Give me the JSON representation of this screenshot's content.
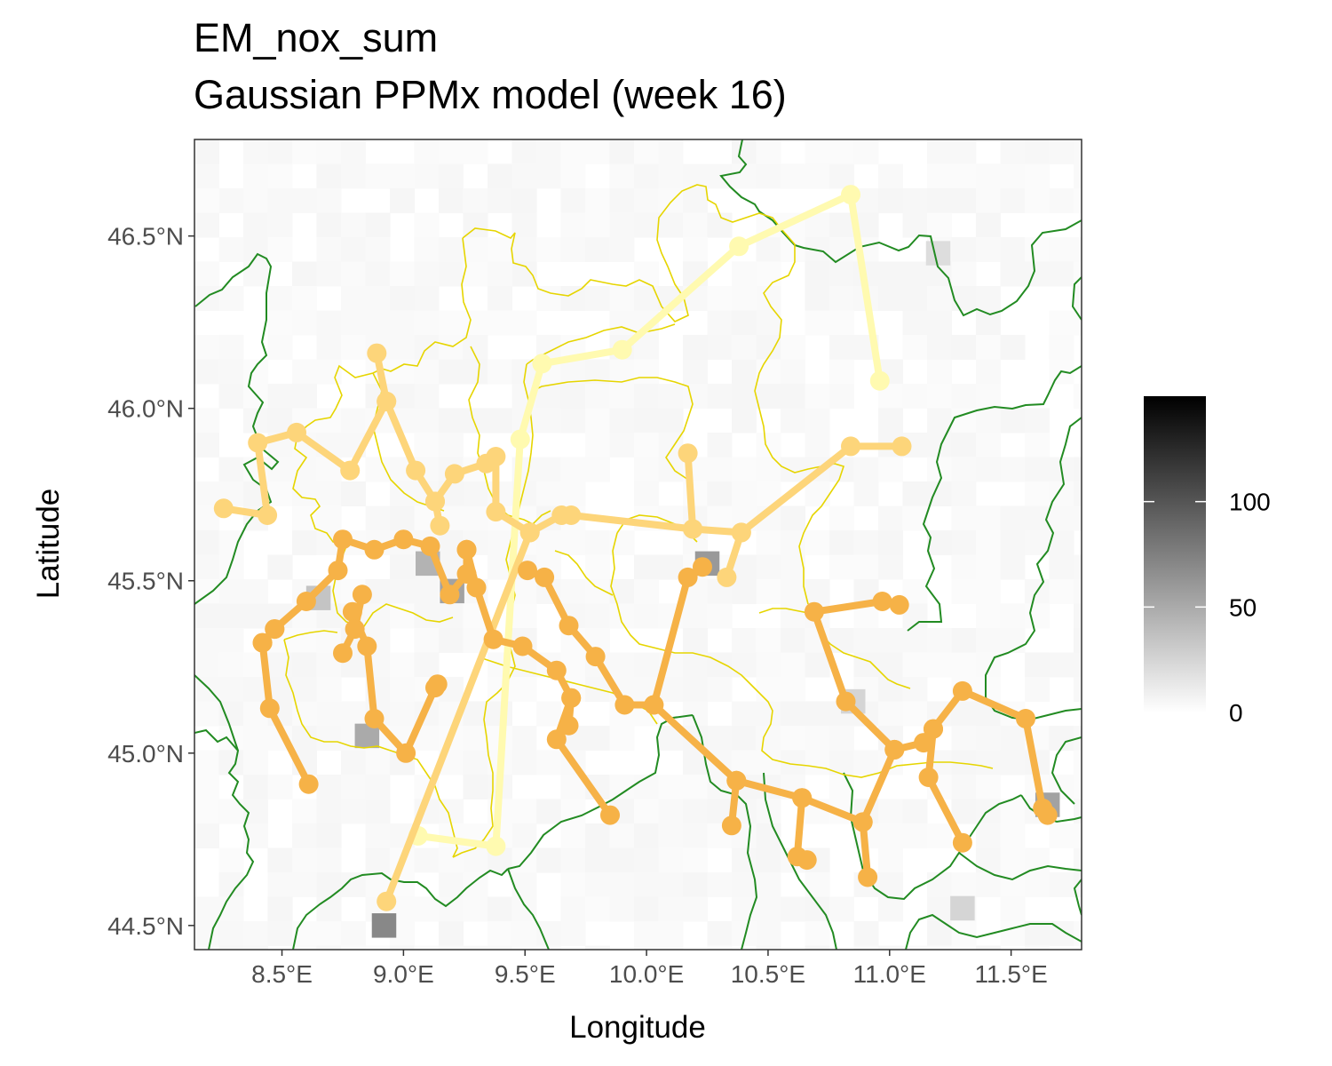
{
  "title_line1": "EM_nox_sum",
  "title_line2": "Gaussian PPMx model (week 16)",
  "x_axis": {
    "label": "Longitude",
    "range": [
      8.14,
      11.79
    ],
    "ticks": [
      {
        "value": 8.5,
        "label": "8.5°E"
      },
      {
        "value": 9.0,
        "label": "9.0°E"
      },
      {
        "value": 9.5,
        "label": "9.5°E"
      },
      {
        "value": 10.0,
        "label": "10.0°E"
      },
      {
        "value": 10.5,
        "label": "10.5°E"
      },
      {
        "value": 11.0,
        "label": "11.0°E"
      },
      {
        "value": 11.5,
        "label": "11.5°E"
      }
    ]
  },
  "y_axis": {
    "label": "Latitude",
    "range": [
      44.43,
      46.78
    ],
    "ticks": [
      {
        "value": 44.5,
        "label": "44.5°N"
      },
      {
        "value": 45.0,
        "label": "45.0°N"
      },
      {
        "value": 45.5,
        "label": "45.5°N"
      },
      {
        "value": 46.0,
        "label": "46.0°N"
      },
      {
        "value": 46.5,
        "label": "46.5°N"
      }
    ]
  },
  "legend": {
    "scale_min": 0,
    "scale_max": 150,
    "labels": [
      {
        "value": 0,
        "label": "0"
      },
      {
        "value": 50,
        "label": "50"
      },
      {
        "value": 100,
        "label": "100"
      }
    ],
    "gradient_from": "#ffffff",
    "gradient_to": "#000000"
  },
  "colors": {
    "border_green": "#228B22",
    "border_yellow": "#E6D500",
    "cluster_light": "#FFFAB0",
    "cluster_mid": "#FDD57A",
    "cluster_orange": "#F6B247"
  },
  "chart_data": {
    "type": "map",
    "raster_hotspots": [
      {
        "lon": 8.92,
        "lat": 44.5,
        "value": 70
      },
      {
        "lon": 9.2,
        "lat": 45.47,
        "value": 55
      },
      {
        "lon": 9.1,
        "lat": 45.55,
        "value": 45
      },
      {
        "lon": 10.25,
        "lat": 45.55,
        "value": 60
      },
      {
        "lon": 8.85,
        "lat": 45.05,
        "value": 50
      },
      {
        "lon": 11.65,
        "lat": 44.85,
        "value": 55
      },
      {
        "lon": 8.65,
        "lat": 45.45,
        "value": 35
      },
      {
        "lon": 11.3,
        "lat": 44.55,
        "value": 25
      },
      {
        "lon": 10.85,
        "lat": 45.15,
        "value": 25
      },
      {
        "lon": 11.2,
        "lat": 46.45,
        "value": 20
      }
    ],
    "clusters": [
      {
        "color": "cluster_light",
        "paths": [
          [
            [
              9.06,
              44.76
            ],
            [
              9.38,
              44.73
            ],
            [
              9.48,
              45.91
            ],
            [
              9.57,
              46.13
            ],
            [
              9.9,
              46.17
            ],
            [
              10.38,
              46.47
            ],
            [
              10.84,
              46.62
            ],
            [
              10.96,
              46.08
            ]
          ]
        ]
      },
      {
        "color": "cluster_mid",
        "paths": [
          [
            [
              8.26,
              45.71
            ],
            [
              8.44,
              45.69
            ],
            [
              8.4,
              45.9
            ],
            [
              8.56,
              45.93
            ],
            [
              8.78,
              45.82
            ],
            [
              8.93,
              46.02
            ],
            [
              8.89,
              46.16
            ]
          ],
          [
            [
              8.93,
              46.02
            ],
            [
              9.05,
              45.82
            ],
            [
              9.13,
              45.73
            ],
            [
              9.21,
              45.81
            ],
            [
              9.34,
              45.84
            ],
            [
              9.38,
              45.86
            ],
            [
              9.38,
              45.7
            ],
            [
              9.52,
              45.64
            ],
            [
              9.65,
              45.69
            ],
            [
              9.69,
              45.69
            ],
            [
              10.19,
              45.65
            ],
            [
              10.39,
              45.64
            ],
            [
              10.84,
              45.89
            ],
            [
              11.05,
              45.89
            ]
          ],
          [
            [
              10.19,
              45.65
            ],
            [
              10.17,
              45.87
            ]
          ],
          [
            [
              10.39,
              45.64
            ],
            [
              10.33,
              45.51
            ]
          ],
          [
            [
              9.13,
              45.73
            ],
            [
              9.15,
              45.66
            ]
          ],
          [
            [
              8.93,
              44.57
            ],
            [
              9.52,
              45.64
            ]
          ]
        ]
      },
      {
        "color": "cluster_orange",
        "paths": [
          [
            [
              8.61,
              44.91
            ],
            [
              8.45,
              45.13
            ],
            [
              8.42,
              45.32
            ],
            [
              8.47,
              45.36
            ],
            [
              8.6,
              45.44
            ],
            [
              8.73,
              45.53
            ],
            [
              8.75,
              45.62
            ],
            [
              8.88,
              45.59
            ],
            [
              9.0,
              45.62
            ],
            [
              9.11,
              45.6
            ],
            [
              9.19,
              45.46
            ],
            [
              9.26,
              45.52
            ],
            [
              9.26,
              45.59
            ]
          ],
          [
            [
              8.79,
              45.41
            ],
            [
              8.85,
              45.31
            ],
            [
              8.88,
              45.1
            ],
            [
              9.01,
              45.0
            ],
            [
              9.13,
              45.19
            ],
            [
              9.14,
              45.2
            ]
          ],
          [
            [
              8.75,
              45.29
            ],
            [
              8.8,
              45.36
            ],
            [
              8.83,
              45.46
            ]
          ],
          [
            [
              8.42,
              45.32
            ],
            [
              8.47,
              45.36
            ]
          ],
          [
            [
              9.26,
              45.59
            ],
            [
              9.3,
              45.48
            ],
            [
              9.37,
              45.33
            ],
            [
              9.49,
              45.31
            ],
            [
              9.63,
              45.24
            ],
            [
              9.69,
              45.16
            ],
            [
              9.63,
              45.04
            ],
            [
              9.85,
              44.82
            ]
          ],
          [
            [
              9.51,
              45.53
            ],
            [
              9.58,
              45.51
            ],
            [
              9.68,
              45.37
            ],
            [
              9.79,
              45.28
            ],
            [
              9.91,
              45.14
            ],
            [
              10.03,
              45.14
            ],
            [
              10.17,
              45.51
            ],
            [
              10.23,
              45.54
            ]
          ],
          [
            [
              9.69,
              45.16
            ],
            [
              9.68,
              45.08
            ]
          ],
          [
            [
              10.03,
              45.14
            ],
            [
              10.37,
              44.92
            ],
            [
              10.64,
              44.87
            ],
            [
              10.89,
              44.8
            ],
            [
              10.91,
              44.64
            ]
          ],
          [
            [
              10.37,
              44.92
            ],
            [
              10.35,
              44.79
            ]
          ],
          [
            [
              10.64,
              44.87
            ],
            [
              10.62,
              44.7
            ],
            [
              10.66,
              44.69
            ]
          ],
          [
            [
              10.89,
              44.8
            ],
            [
              11.02,
              45.01
            ],
            [
              11.14,
              45.03
            ],
            [
              11.18,
              45.07
            ],
            [
              11.3,
              45.18
            ],
            [
              11.56,
              45.1
            ],
            [
              11.63,
              44.84
            ],
            [
              11.65,
              44.82
            ]
          ],
          [
            [
              11.18,
              45.07
            ],
            [
              11.16,
              44.93
            ],
            [
              11.3,
              44.74
            ]
          ],
          [
            [
              11.02,
              45.01
            ],
            [
              10.82,
              45.15
            ],
            [
              10.69,
              45.41
            ],
            [
              10.97,
              45.44
            ],
            [
              11.04,
              45.43
            ]
          ]
        ]
      }
    ]
  }
}
